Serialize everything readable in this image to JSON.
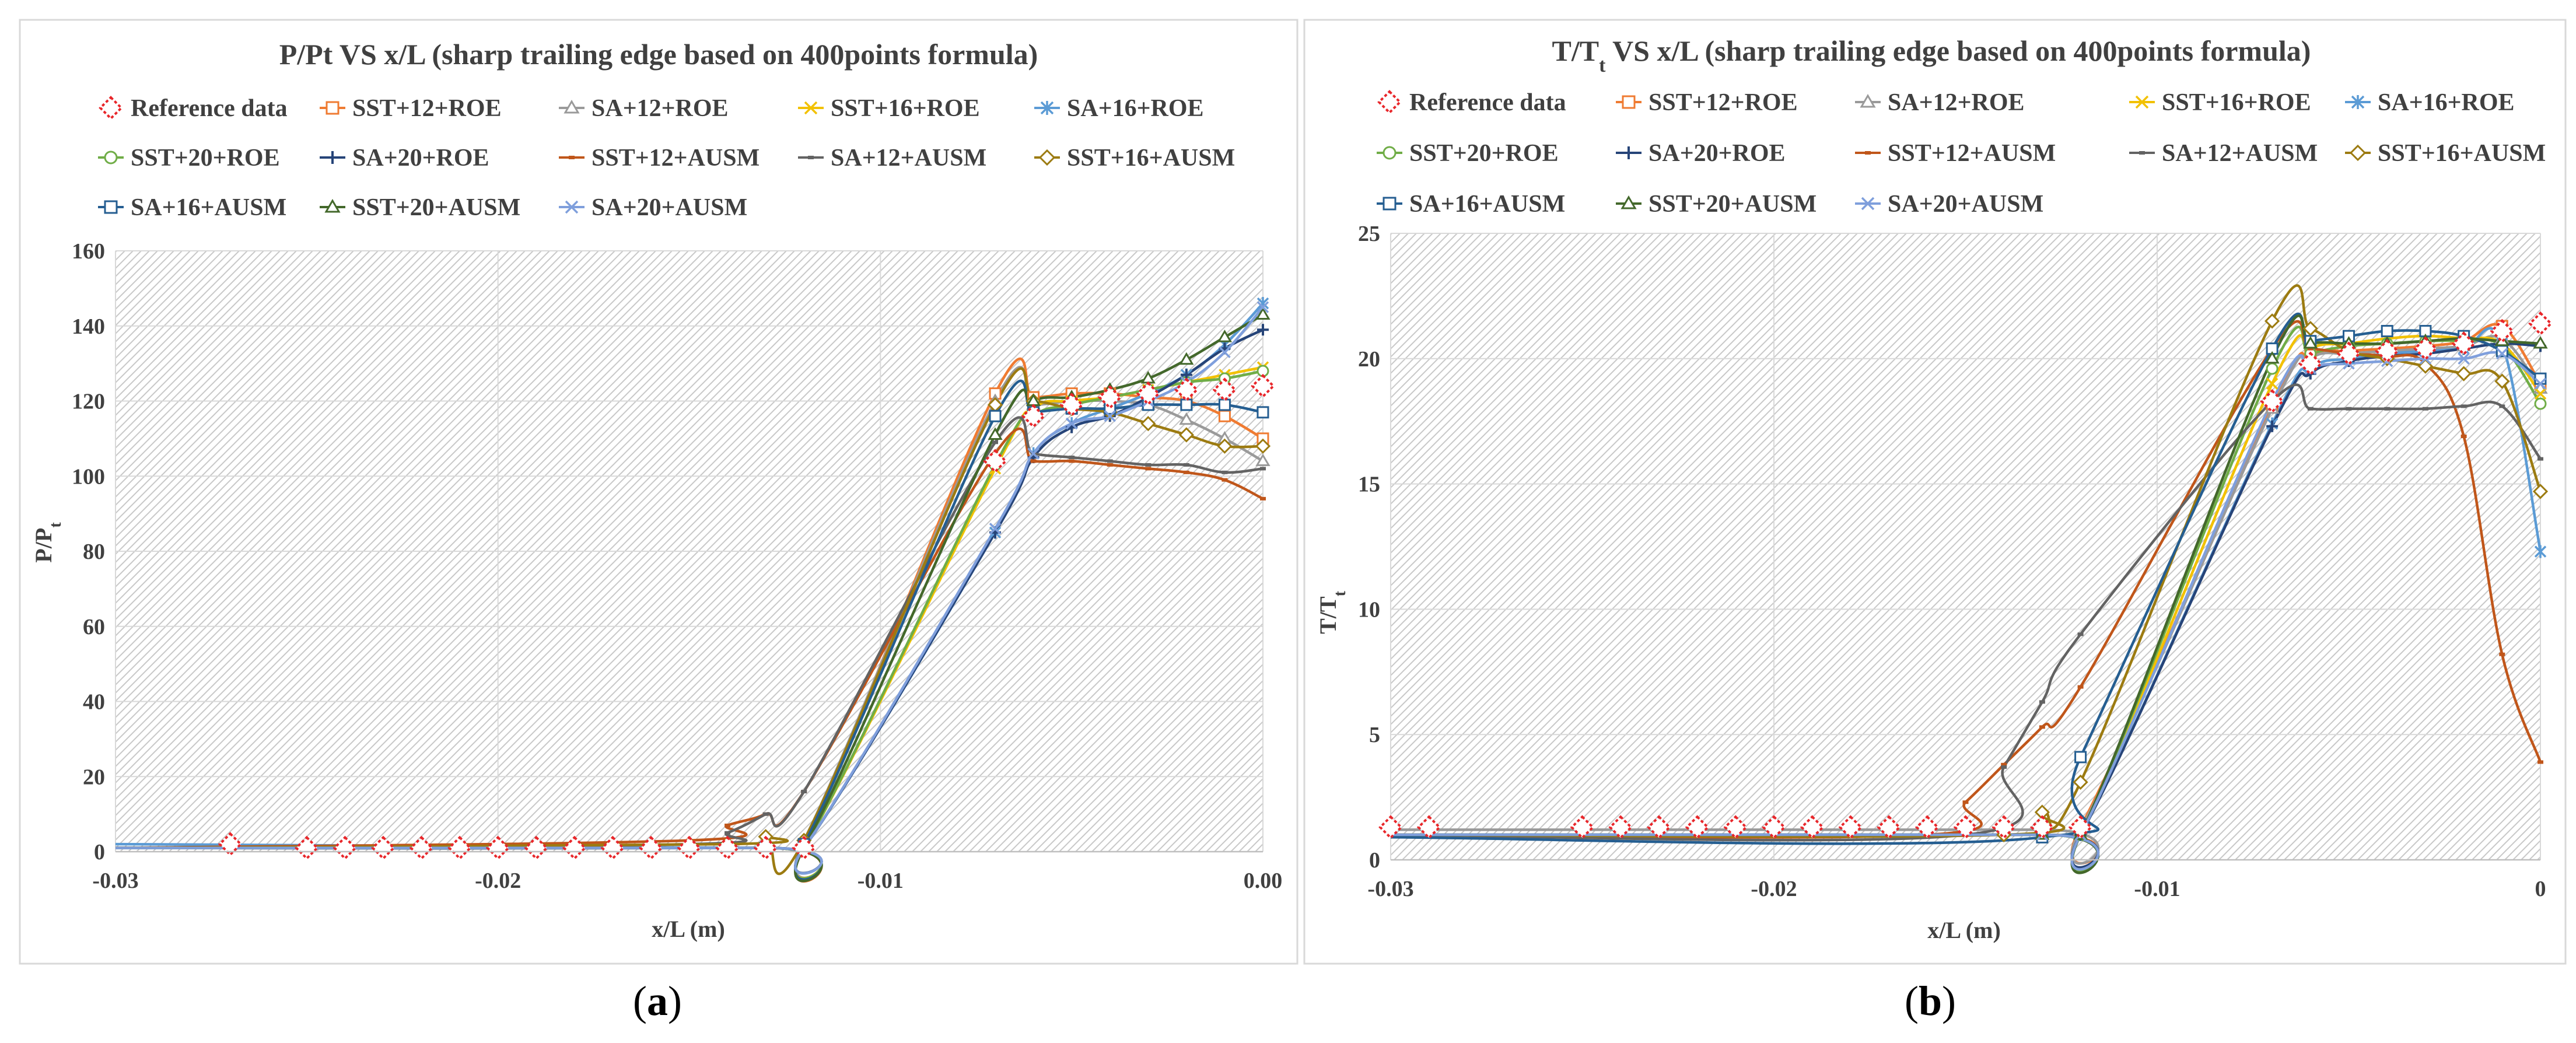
{
  "colors": {
    "ref": "#e8262a",
    "SST+12+ROE": "#ef7b32",
    "SA+12+ROE": "#9a9a9a",
    "SST+16+ROE": "#f2c100",
    "SA+16+ROE": "#5b9bd5",
    "SST+20+ROE": "#70ad47",
    "SA+20+ROE": "#264478",
    "SST+12+AUSM": "#c0561a",
    "SA+12+AUSM": "#636363",
    "SST+16+AUSM": "#9c7b11",
    "SA+16+AUSM": "#255e91",
    "SST+20+AUSM": "#43682b",
    "SA+20+AUSM": "#7f9fdc"
  },
  "panel_labels": {
    "a": "a",
    "b": "b"
  },
  "chart_data": [
    {
      "id": "a",
      "type": "line",
      "title": "P/Pt VS x/L (sharp trailing edge based on 400points formula)",
      "xlabel": "x/L (m)",
      "ylabel_main": "P/P",
      "ylabel_sub": "t",
      "xlim": [
        -0.03,
        0.0
      ],
      "ylim": [
        0,
        160
      ],
      "xticks": [
        -0.03,
        -0.02,
        -0.01,
        0.0
      ],
      "xticklabels": [
        "-0.03",
        "-0.02",
        "-0.01",
        "0.00"
      ],
      "yticks": [
        0,
        20,
        40,
        60,
        80,
        100,
        120,
        140,
        160
      ],
      "legend": [
        "Reference data",
        "SST+12+ROE",
        "SA+12+ROE",
        "SST+16+ROE",
        "SA+16+ROE",
        "SST+20+ROE",
        "SA+20+ROE",
        "SST+12+AUSM",
        "SA+12+AUSM",
        "SST+16+AUSM",
        "SA+16+AUSM",
        "SST+20+AUSM",
        "SA+20+AUSM"
      ],
      "reference": {
        "name": "Reference data",
        "x": [
          -0.027,
          -0.025,
          -0.024,
          -0.023,
          -0.022,
          -0.021,
          -0.02,
          -0.019,
          -0.018,
          -0.017,
          -0.016,
          -0.015,
          -0.014,
          -0.013,
          -0.012,
          -0.007,
          -0.006,
          -0.005,
          -0.004,
          -0.003,
          -0.002,
          -0.001,
          0.0
        ],
        "y": [
          2,
          1,
          1,
          1,
          1,
          1,
          1,
          1,
          1,
          1,
          1,
          1,
          1,
          1,
          1,
          104,
          116,
          119,
          121,
          122,
          123,
          123,
          124
        ]
      },
      "series": [
        {
          "name": "SST+12+ROE",
          "x": [
            -0.03,
            -0.013,
            -0.012,
            -0.007,
            -0.006,
            -0.005,
            -0.004,
            -0.003,
            -0.002,
            -0.001,
            0.0
          ],
          "y": [
            1,
            1,
            2,
            122,
            121,
            122,
            122,
            121,
            120,
            116,
            110
          ]
        },
        {
          "name": "SA+12+ROE",
          "x": [
            -0.03,
            -0.013,
            -0.012,
            -0.007,
            -0.006,
            -0.005,
            -0.004,
            -0.003,
            -0.002,
            -0.001,
            0.0
          ],
          "y": [
            1,
            1,
            3,
            120,
            119,
            120,
            120,
            119,
            115,
            110,
            104
          ]
        },
        {
          "name": "SST+16+ROE",
          "x": [
            -0.03,
            -0.013,
            -0.012,
            -0.007,
            -0.006,
            -0.005,
            -0.004,
            -0.003,
            -0.002,
            -0.001,
            0.0
          ],
          "y": [
            1,
            1,
            1,
            102,
            118,
            120,
            121,
            123,
            125,
            127,
            129
          ]
        },
        {
          "name": "SA+16+ROE",
          "x": [
            -0.03,
            -0.013,
            -0.012,
            -0.007,
            -0.006,
            -0.005,
            -0.004,
            -0.003,
            -0.002,
            -0.001,
            0.0
          ],
          "y": [
            2,
            1,
            1,
            85,
            106,
            114,
            118,
            122,
            127,
            135,
            146
          ]
        },
        {
          "name": "SST+20+ROE",
          "x": [
            -0.03,
            -0.013,
            -0.012,
            -0.007,
            -0.006,
            -0.005,
            -0.004,
            -0.003,
            -0.002,
            -0.001,
            0.0
          ],
          "y": [
            1,
            1,
            1,
            103,
            116,
            119,
            121,
            123,
            125,
            126,
            128
          ]
        },
        {
          "name": "SA+20+ROE",
          "x": [
            -0.03,
            -0.013,
            -0.012,
            -0.007,
            -0.006,
            -0.005,
            -0.004,
            -0.003,
            -0.002,
            -0.001,
            0.0
          ],
          "y": [
            1,
            1,
            1,
            85,
            105,
            113,
            116,
            121,
            127,
            134,
            139
          ]
        },
        {
          "name": "SST+12+AUSM",
          "x": [
            -0.03,
            -0.015,
            -0.014,
            -0.013,
            -0.012,
            -0.007,
            -0.006,
            -0.005,
            -0.004,
            -0.003,
            -0.002,
            -0.001,
            0.0
          ],
          "y": [
            1,
            3,
            7,
            10,
            16,
            106,
            104,
            104,
            103,
            102,
            101,
            99,
            94
          ]
        },
        {
          "name": "SA+12+AUSM",
          "x": [
            -0.03,
            -0.015,
            -0.014,
            -0.013,
            -0.012,
            -0.007,
            -0.006,
            -0.005,
            -0.004,
            -0.003,
            -0.002,
            -0.001,
            0.0
          ],
          "y": [
            1,
            2,
            5,
            10,
            16,
            109,
            106,
            105,
            104,
            103,
            103,
            101,
            102
          ]
        },
        {
          "name": "SST+16+AUSM",
          "x": [
            -0.03,
            -0.014,
            -0.013,
            -0.012,
            -0.007,
            -0.006,
            -0.005,
            -0.004,
            -0.003,
            -0.002,
            -0.001,
            0.0
          ],
          "y": [
            1,
            2,
            4,
            3,
            119,
            120,
            118,
            117,
            114,
            111,
            108,
            108
          ]
        },
        {
          "name": "SA+16+AUSM",
          "x": [
            -0.03,
            -0.013,
            -0.012,
            -0.007,
            -0.006,
            -0.005,
            -0.004,
            -0.003,
            -0.002,
            -0.001,
            0.0
          ],
          "y": [
            1,
            1,
            2,
            116,
            117,
            118,
            118,
            119,
            119,
            119,
            117
          ]
        },
        {
          "name": "SST+20+AUSM",
          "x": [
            -0.03,
            -0.013,
            -0.012,
            -0.007,
            -0.006,
            -0.005,
            -0.004,
            -0.003,
            -0.002,
            -0.001,
            0.0
          ],
          "y": [
            1,
            1,
            1,
            111,
            120,
            121,
            123,
            126,
            131,
            137,
            143
          ]
        },
        {
          "name": "SA+20+AUSM",
          "x": [
            -0.03,
            -0.013,
            -0.012,
            -0.007,
            -0.006,
            -0.005,
            -0.004,
            -0.003,
            -0.002,
            -0.001,
            0.0
          ],
          "y": [
            1,
            1,
            1,
            86,
            106,
            114,
            116,
            120,
            125,
            133,
            145
          ]
        }
      ]
    },
    {
      "id": "b",
      "type": "line",
      "title": "T/T",
      "title_sub": "t",
      "title_rest": " VS x/L (sharp trailing edge based on 400points formula)",
      "xlabel": "x/L (m)",
      "ylabel_main": "T/T",
      "ylabel_sub": "t",
      "xlim": [
        -0.03,
        0.0
      ],
      "ylim": [
        0,
        25
      ],
      "xticks": [
        -0.03,
        -0.02,
        -0.01,
        0.0
      ],
      "xticklabels": [
        "-0.03",
        "-0.02",
        "-0.01",
        "0"
      ],
      "yticks": [
        0,
        5,
        10,
        15,
        20,
        25
      ],
      "legend": [
        "Reference data",
        "SST+12+ROE",
        "SA+12+ROE",
        "SST+16+ROE",
        "SA+16+ROE",
        "SST+20+ROE",
        "SA+20+ROE",
        "SST+12+AUSM",
        "SA+12+AUSM",
        "SST+16+AUSM",
        "SA+16+AUSM",
        "SST+20+AUSM",
        "SA+20+AUSM"
      ],
      "reference": {
        "name": "Reference data",
        "x": [
          -0.03,
          -0.029,
          -0.025,
          -0.024,
          -0.023,
          -0.022,
          -0.021,
          -0.02,
          -0.019,
          -0.018,
          -0.017,
          -0.016,
          -0.015,
          -0.014,
          -0.013,
          -0.012,
          -0.007,
          -0.006,
          -0.005,
          -0.004,
          -0.003,
          -0.002,
          -0.001,
          0.0
        ],
        "y": [
          1.3,
          1.3,
          1.3,
          1.3,
          1.3,
          1.3,
          1.3,
          1.3,
          1.3,
          1.3,
          1.3,
          1.3,
          1.3,
          1.3,
          1.3,
          1.3,
          18.3,
          19.8,
          20.2,
          20.3,
          20.4,
          20.6,
          21.1,
          21.4
        ]
      },
      "series": [
        {
          "name": "SST+12+ROE",
          "x": [
            -0.03,
            -0.013,
            -0.012,
            -0.007,
            -0.006,
            -0.005,
            -0.004,
            -0.003,
            -0.002,
            -0.001,
            0.0
          ],
          "y": [
            1.0,
            1.0,
            1.3,
            18.1,
            20.1,
            20.3,
            20.4,
            20.5,
            20.7,
            21.3,
            19.0
          ]
        },
        {
          "name": "SA+12+ROE",
          "x": [
            -0.03,
            -0.013,
            -0.012,
            -0.007,
            -0.006,
            -0.005,
            -0.004,
            -0.003,
            -0.002,
            -0.001,
            0.0
          ],
          "y": [
            1.2,
            1.2,
            1.2,
            18.0,
            20.0,
            20.2,
            20.3,
            20.4,
            20.5,
            20.8,
            18.8
          ]
        },
        {
          "name": "SST+16+ROE",
          "x": [
            -0.03,
            -0.013,
            -0.012,
            -0.007,
            -0.006,
            -0.005,
            -0.004,
            -0.003,
            -0.002,
            -0.001,
            0.0
          ],
          "y": [
            1.0,
            1.0,
            1.0,
            19.0,
            20.4,
            20.6,
            20.8,
            20.9,
            20.8,
            20.6,
            18.6
          ]
        },
        {
          "name": "SA+16+ROE",
          "x": [
            -0.03,
            -0.013,
            -0.012,
            -0.007,
            -0.006,
            -0.005,
            -0.004,
            -0.003,
            -0.002,
            -0.001,
            0.0
          ],
          "y": [
            1.0,
            1.0,
            1.0,
            17.4,
            19.6,
            20.0,
            20.2,
            20.3,
            20.4,
            20.6,
            12.3
          ]
        },
        {
          "name": "SST+20+ROE",
          "x": [
            -0.03,
            -0.013,
            -0.012,
            -0.007,
            -0.006,
            -0.005,
            -0.004,
            -0.003,
            -0.002,
            -0.001,
            0.0
          ],
          "y": [
            1.0,
            1.0,
            1.0,
            19.6,
            20.2,
            20.5,
            20.6,
            20.7,
            20.7,
            20.5,
            18.2
          ]
        },
        {
          "name": "SA+20+ROE",
          "x": [
            -0.03,
            -0.013,
            -0.012,
            -0.007,
            -0.006,
            -0.005,
            -0.004,
            -0.003,
            -0.002,
            -0.001,
            0.0
          ],
          "y": [
            1.0,
            1.0,
            1.0,
            17.3,
            19.4,
            19.9,
            20.1,
            20.2,
            20.4,
            20.6,
            20.5
          ]
        },
        {
          "name": "SST+12+AUSM",
          "x": [
            -0.03,
            -0.016,
            -0.015,
            -0.014,
            -0.013,
            -0.012,
            -0.007,
            -0.006,
            -0.005,
            -0.004,
            -0.003,
            -0.002,
            -0.001,
            0.0
          ],
          "y": [
            1.0,
            1.0,
            2.3,
            3.8,
            5.3,
            6.9,
            20.4,
            20.4,
            20.2,
            20.1,
            19.8,
            16.9,
            8.2,
            3.9
          ]
        },
        {
          "name": "SA+12+AUSM",
          "x": [
            -0.03,
            -0.015,
            -0.014,
            -0.013,
            -0.012,
            -0.007,
            -0.006,
            -0.005,
            -0.004,
            -0.003,
            -0.002,
            -0.001,
            0.0
          ],
          "y": [
            1.0,
            1.0,
            3.7,
            6.3,
            9.0,
            18.3,
            18.0,
            18.0,
            18.0,
            18.0,
            18.1,
            18.1,
            16.0
          ]
        },
        {
          "name": "SST+16+AUSM",
          "x": [
            -0.03,
            -0.014,
            -0.013,
            -0.012,
            -0.007,
            -0.006,
            -0.005,
            -0.004,
            -0.003,
            -0.002,
            -0.001,
            0.0
          ],
          "y": [
            1.0,
            1.0,
            1.9,
            3.1,
            21.5,
            21.2,
            20.3,
            20.0,
            19.7,
            19.4,
            19.1,
            14.7
          ]
        },
        {
          "name": "SA+16+AUSM",
          "x": [
            -0.03,
            -0.013,
            -0.012,
            -0.007,
            -0.006,
            -0.005,
            -0.004,
            -0.003,
            -0.002,
            -0.001,
            0.0
          ],
          "y": [
            0.9,
            0.9,
            4.1,
            20.4,
            20.7,
            20.9,
            21.1,
            21.1,
            20.9,
            20.3,
            19.2
          ]
        },
        {
          "name": "SST+20+AUSM",
          "x": [
            -0.03,
            -0.013,
            -0.012,
            -0.007,
            -0.006,
            -0.005,
            -0.004,
            -0.003,
            -0.002,
            -0.001,
            0.0
          ],
          "y": [
            1.0,
            1.0,
            1.0,
            20.0,
            20.6,
            20.6,
            20.6,
            20.7,
            20.8,
            20.7,
            20.6
          ]
        },
        {
          "name": "SA+20+AUSM",
          "x": [
            -0.03,
            -0.013,
            -0.012,
            -0.007,
            -0.006,
            -0.005,
            -0.004,
            -0.003,
            -0.002,
            -0.001,
            0.0
          ],
          "y": [
            1.0,
            1.0,
            1.0,
            18.3,
            19.6,
            19.8,
            19.9,
            20.0,
            20.0,
            20.2,
            19.0
          ]
        }
      ]
    }
  ]
}
